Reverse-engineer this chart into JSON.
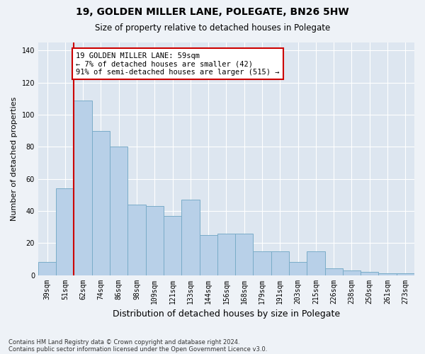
{
  "title1": "19, GOLDEN MILLER LANE, POLEGATE, BN26 5HW",
  "title2": "Size of property relative to detached houses in Polegate",
  "xlabel": "Distribution of detached houses by size in Polegate",
  "ylabel": "Number of detached properties",
  "categories": [
    "39sqm",
    "51sqm",
    "62sqm",
    "74sqm",
    "86sqm",
    "98sqm",
    "109sqm",
    "121sqm",
    "133sqm",
    "144sqm",
    "156sqm",
    "168sqm",
    "179sqm",
    "191sqm",
    "203sqm",
    "215sqm",
    "226sqm",
    "238sqm",
    "250sqm",
    "261sqm",
    "273sqm"
  ],
  "values": [
    8,
    54,
    109,
    90,
    80,
    44,
    43,
    37,
    47,
    25,
    26,
    26,
    15,
    15,
    8,
    15,
    4,
    3,
    2,
    1,
    1
  ],
  "bar_color": "#b8d0e8",
  "bar_edge_color": "#7aacc8",
  "vline_x": 1.5,
  "vline_color": "#cc0000",
  "annotation_text": "19 GOLDEN MILLER LANE: 59sqm\n← 7% of detached houses are smaller (42)\n91% of semi-detached houses are larger (515) →",
  "annotation_box_color": "#ffffff",
  "annotation_box_edge": "#cc0000",
  "ylim": [
    0,
    145
  ],
  "yticks": [
    0,
    20,
    40,
    60,
    80,
    100,
    120,
    140
  ],
  "footnote1": "Contains HM Land Registry data © Crown copyright and database right 2024.",
  "footnote2": "Contains public sector information licensed under the Open Government Licence v3.0.",
  "bg_color": "#eef2f7",
  "plot_bg_color": "#dde6f0"
}
